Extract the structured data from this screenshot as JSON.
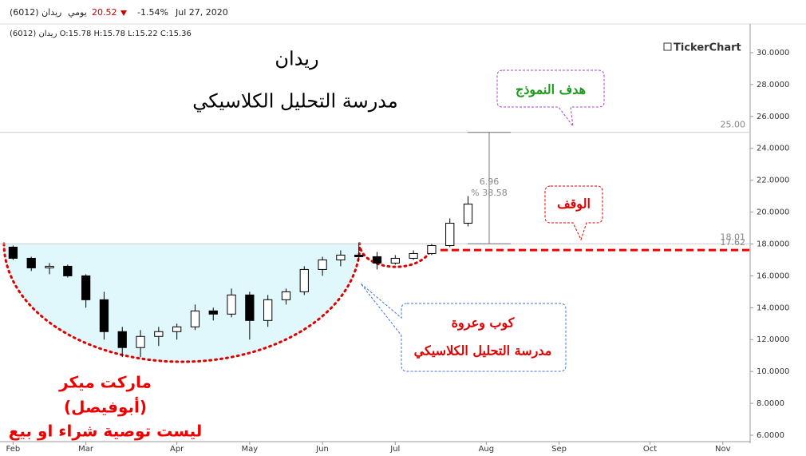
{
  "header": {
    "symbol": "ريدان (6012)",
    "period": "يومي",
    "price": 20.52,
    "change": {
      "value": -1.54,
      "label": "-1.54%"
    },
    "date": "Jul 27, 2020",
    "ohlc_line": "ريدان (6012)  O:15.78  H:15.78  L:15.22  C:15.36",
    "logo": "TickerChart"
  },
  "chart_data": {
    "type": "candlestick",
    "title": "ريدان",
    "subtitle": "مدرسة التحليل الكلاسيكي",
    "categories": [
      "Feb",
      null,
      null,
      null,
      "Mar",
      null,
      null,
      null,
      null,
      "Apr",
      null,
      null,
      null,
      "May",
      null,
      null,
      null,
      "Jun",
      null,
      null,
      null,
      "Jul",
      null,
      null,
      null,
      null,
      "Aug",
      null,
      null,
      null,
      "Sep",
      null,
      null,
      null,
      null,
      "Oct",
      null,
      null,
      null,
      "Nov",
      null
    ],
    "ohlc": [
      [
        17.8,
        17.9,
        17.0,
        17.1
      ],
      [
        17.1,
        17.2,
        16.3,
        16.5
      ],
      [
        16.5,
        16.8,
        16.1,
        16.6
      ],
      [
        16.6,
        16.7,
        15.9,
        16.0
      ],
      [
        16.0,
        16.1,
        14.0,
        14.5
      ],
      [
        14.5,
        15.0,
        12.0,
        12.5
      ],
      [
        12.5,
        12.8,
        10.9,
        11.5
      ],
      [
        11.5,
        12.6,
        10.9,
        12.2
      ],
      [
        12.2,
        12.8,
        11.6,
        12.5
      ],
      [
        12.5,
        13.0,
        12.0,
        12.8
      ],
      [
        12.8,
        14.2,
        12.6,
        13.8
      ],
      [
        13.8,
        14.0,
        13.2,
        13.6
      ],
      [
        13.6,
        15.2,
        13.4,
        14.8
      ],
      [
        14.8,
        15.0,
        12.0,
        13.2
      ],
      [
        13.2,
        14.8,
        12.8,
        14.5
      ],
      [
        14.5,
        15.2,
        14.2,
        15.0
      ],
      [
        15.0,
        16.6,
        14.8,
        16.4
      ],
      [
        16.4,
        17.2,
        16.0,
        17.0
      ],
      [
        17.0,
        17.6,
        16.6,
        17.3
      ],
      [
        17.3,
        18.1,
        16.9,
        17.2
      ],
      [
        17.2,
        17.5,
        16.4,
        16.8
      ],
      [
        16.8,
        17.3,
        16.7,
        17.1
      ],
      [
        17.1,
        17.6,
        17.0,
        17.4
      ],
      [
        17.4,
        18.0,
        17.3,
        17.9
      ],
      [
        17.9,
        19.6,
        17.8,
        19.3
      ],
      [
        19.3,
        21.0,
        19.1,
        20.5
      ],
      null,
      null,
      null,
      null,
      null,
      null,
      null,
      null,
      null,
      null,
      null,
      null,
      null,
      null,
      null
    ],
    "ylim": [
      5.6,
      31.55
    ],
    "yticks": [
      {
        "value": 6,
        "label": "6.0000"
      },
      {
        "value": 8,
        "label": "8.0000"
      },
      {
        "value": 10,
        "label": "10.0000"
      },
      {
        "value": 12,
        "label": "12.0000"
      },
      {
        "value": 14,
        "label": "14.0000"
      },
      {
        "value": 16,
        "label": "16.0000"
      },
      {
        "value": 18,
        "label": "18.0000"
      },
      {
        "value": 20,
        "label": "20.0000"
      },
      {
        "value": 22,
        "label": "22.0000"
      },
      {
        "value": 24,
        "label": "24.0000"
      },
      {
        "value": 26,
        "label": "26.0000"
      },
      {
        "value": 28,
        "label": "28.0000"
      },
      {
        "value": 30,
        "label": "30.0000"
      }
    ],
    "levels": [
      {
        "value": 25,
        "label": "25.00"
      },
      {
        "value": 18.01,
        "label": "18.01"
      },
      {
        "value": 17.62,
        "label": "17.62"
      }
    ],
    "measure": {
      "change": 6.96,
      "percent": {
        "value": 38.58,
        "label": "% 38.58"
      }
    },
    "annotations": {
      "target": "هدف النموذج",
      "stop": "الوقف",
      "pattern": "كوب وعروة",
      "school": "مدرسة التحليل الكلاسيكي",
      "author": "ماركت ميكر",
      "author_alias": "(أبوفيصل)",
      "disclaimer": "ليست توصية شراء او بيع"
    }
  }
}
